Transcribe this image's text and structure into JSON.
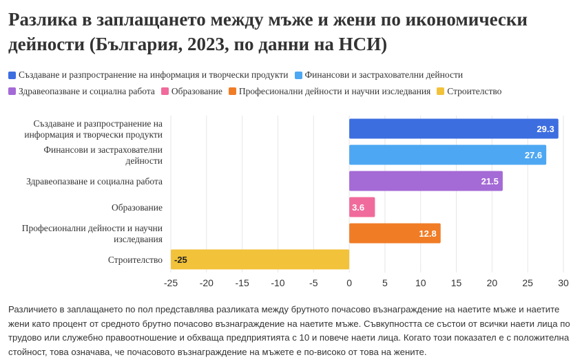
{
  "title": "Разлика в заплащането между мъже и жени по икономически дейности (България, 2023, по данни на НСИ)",
  "note": "Различието в заплащането по пол представлява разликата между брутното почасово възнаграждение на наетите мъже и наетите жени като процент от средното брутно почасово възнаграждение на наетите мъже. Съвкупността се състои от всички наети лица по трудово или служебно правоотношение и обхваща предприятията с 10 и повече наети лица. Когато този показател е с положителна стойност, това означава, че почасовото възнаграждение на мъжете е по-високо от това на жените.",
  "legend": [
    {
      "label": "Създаване и разпространение на информация и творчески продукти",
      "color": "#3d6ee0"
    },
    {
      "label": "Финансови и застрахователни дейности",
      "color": "#4ea7f2"
    },
    {
      "label": "Здравеопазване и социална работа",
      "color": "#a46ad6"
    },
    {
      "label": "Образование",
      "color": "#f06b9b"
    },
    {
      "label": "Професионални дейности и научни изследвания",
      "color": "#f07c26"
    },
    {
      "label": "Строителство",
      "color": "#f2c23a"
    }
  ],
  "chart_data": {
    "type": "bar",
    "orientation": "horizontal",
    "categories": [
      [
        "Създаване и разпространение на",
        "информация и творчески продукти"
      ],
      [
        "Финансови и застрахователни",
        "дейности"
      ],
      [
        "Здравеопазване и социална работа"
      ],
      [
        "Образование"
      ],
      [
        "Професионални дейности и научни",
        "изследвания"
      ],
      [
        "Строителство"
      ]
    ],
    "values": [
      29.3,
      27.6,
      21.5,
      3.6,
      12.8,
      -25
    ],
    "value_labels": [
      "29.3",
      "27.6",
      "21.5",
      "3.6",
      "12.8",
      "-25"
    ],
    "colors": [
      "#3d6ee0",
      "#4ea7f2",
      "#a46ad6",
      "#f06b9b",
      "#f07c26",
      "#f2c23a"
    ],
    "xlim": [
      -25,
      30
    ],
    "x_ticks": [
      -25,
      -20,
      -15,
      -10,
      -5,
      0,
      5,
      10,
      15,
      20,
      25,
      30
    ],
    "grid": true
  }
}
